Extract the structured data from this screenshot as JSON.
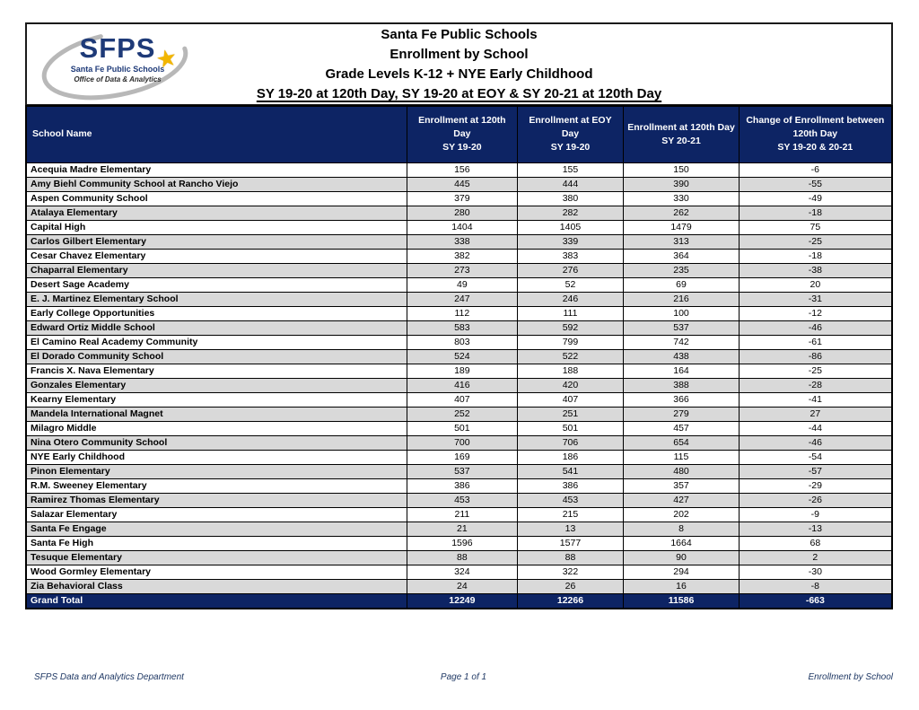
{
  "colors": {
    "navy": "#0d2464",
    "stripe_gray": "#d9d9d9",
    "star_gold": "#f2b600",
    "footer_navy": "#1f3864"
  },
  "logo": {
    "acronym": "SFPS",
    "org": "Santa Fe Public Schools",
    "dept": "Office of Data & Analytics",
    "star_icon": "star-icon",
    "swoosh_icon": "ellipse-swoosh-icon"
  },
  "title": {
    "line1": "Santa Fe Public Schools",
    "line2": "Enrollment by School",
    "line3": "Grade Levels K-12 + NYE Early Childhood",
    "line4": "SY 19-20 at 120th Day, SY 19-20 at EOY & SY 20-21 at 120th Day"
  },
  "table": {
    "columns": [
      {
        "lines": [
          "School Name"
        ]
      },
      {
        "lines": [
          "Enrollment at 120th Day",
          "SY 19-20"
        ]
      },
      {
        "lines": [
          "Enrollment at EOY Day",
          "SY 19-20"
        ]
      },
      {
        "lines": [
          "Enrollment at 120th Day",
          "SY 20-21"
        ]
      },
      {
        "lines": [
          "Change of Enrollment between",
          "120th Day",
          "SY 19-20 & 20-21"
        ]
      }
    ],
    "rows": [
      {
        "school": "Acequia Madre Elementary",
        "values": [
          156,
          155,
          150,
          -6
        ]
      },
      {
        "school": "Amy Biehl Community School at Rancho Viejo",
        "values": [
          445,
          444,
          390,
          -55
        ]
      },
      {
        "school": "Aspen Community School",
        "values": [
          379,
          380,
          330,
          -49
        ]
      },
      {
        "school": "Atalaya Elementary",
        "values": [
          280,
          282,
          262,
          -18
        ]
      },
      {
        "school": "Capital High",
        "values": [
          1404,
          1405,
          1479,
          75
        ]
      },
      {
        "school": "Carlos Gilbert Elementary",
        "values": [
          338,
          339,
          313,
          -25
        ]
      },
      {
        "school": "Cesar Chavez Elementary",
        "values": [
          382,
          383,
          364,
          -18
        ]
      },
      {
        "school": "Chaparral Elementary",
        "values": [
          273,
          276,
          235,
          -38
        ]
      },
      {
        "school": "Desert Sage Academy",
        "values": [
          49,
          52,
          69,
          20
        ]
      },
      {
        "school": "E. J. Martinez Elementary School",
        "values": [
          247,
          246,
          216,
          -31
        ]
      },
      {
        "school": "Early College Opportunities",
        "values": [
          112,
          111,
          100,
          -12
        ]
      },
      {
        "school": "Edward Ortiz Middle School",
        "values": [
          583,
          592,
          537,
          -46
        ]
      },
      {
        "school": "El Camino Real Academy Community",
        "values": [
          803,
          799,
          742,
          -61
        ]
      },
      {
        "school": "El Dorado Community School",
        "values": [
          524,
          522,
          438,
          -86
        ]
      },
      {
        "school": "Francis X. Nava Elementary",
        "values": [
          189,
          188,
          164,
          -25
        ]
      },
      {
        "school": "Gonzales Elementary",
        "values": [
          416,
          420,
          388,
          -28
        ]
      },
      {
        "school": "Kearny Elementary",
        "values": [
          407,
          407,
          366,
          -41
        ]
      },
      {
        "school": "Mandela International Magnet",
        "values": [
          252,
          251,
          279,
          27
        ]
      },
      {
        "school": "Milagro Middle",
        "values": [
          501,
          501,
          457,
          -44
        ]
      },
      {
        "school": "Nina Otero Community School",
        "values": [
          700,
          706,
          654,
          -46
        ]
      },
      {
        "school": "NYE Early Childhood",
        "values": [
          169,
          186,
          115,
          -54
        ]
      },
      {
        "school": "Pinon Elementary",
        "values": [
          537,
          541,
          480,
          -57
        ]
      },
      {
        "school": "R.M. Sweeney Elementary",
        "values": [
          386,
          386,
          357,
          -29
        ]
      },
      {
        "school": "Ramirez Thomas Elementary",
        "values": [
          453,
          453,
          427,
          -26
        ]
      },
      {
        "school": "Salazar Elementary",
        "values": [
          211,
          215,
          202,
          -9
        ]
      },
      {
        "school": "Santa Fe Engage",
        "values": [
          21,
          13,
          8,
          -13
        ]
      },
      {
        "school": "Santa Fe High",
        "values": [
          1596,
          1577,
          1664,
          68
        ]
      },
      {
        "school": "Tesuque Elementary",
        "values": [
          88,
          88,
          90,
          2
        ]
      },
      {
        "school": "Wood Gormley Elementary",
        "values": [
          324,
          322,
          294,
          -30
        ]
      },
      {
        "school": "Zia Behavioral Class",
        "values": [
          24,
          26,
          16,
          -8
        ]
      }
    ],
    "grand_total": {
      "label": "Grand Total",
      "values": [
        12249,
        12266,
        11586,
        -663
      ]
    }
  },
  "footer": {
    "left": "SFPS Data and Analytics Department",
    "center": "Page 1 of 1",
    "right": "Enrollment by School"
  }
}
